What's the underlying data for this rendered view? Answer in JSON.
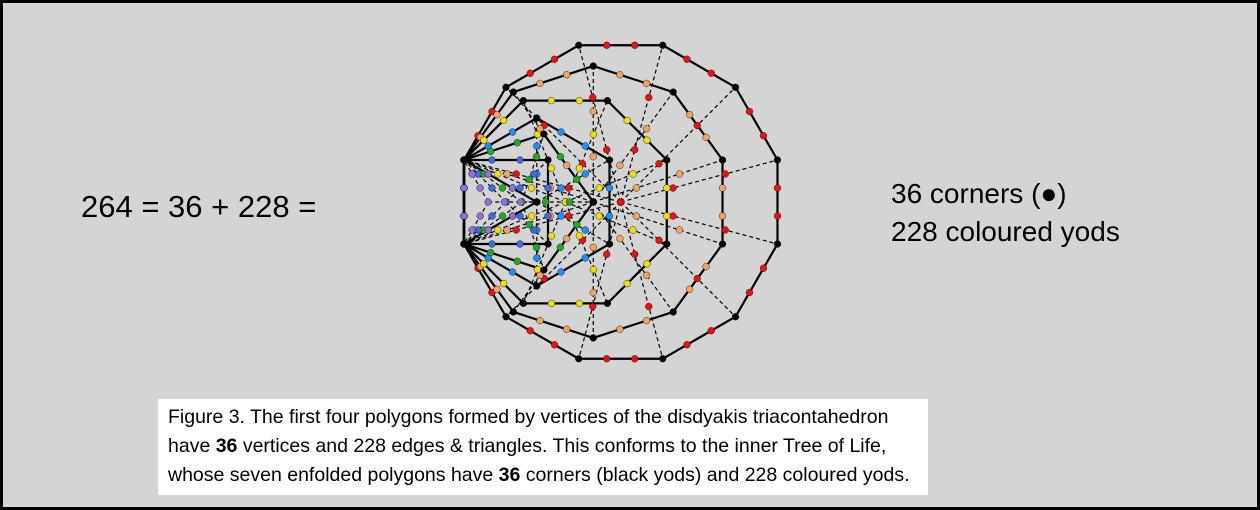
{
  "equation": "264 = 36 + 228 =",
  "legend": [
    "36 corners (●)",
    "228 coloured yods"
  ],
  "caption": {
    "lines": [
      [
        "Figure 3. The first four polygons formed by vertices of the disdyakis triacontahedron"
      ],
      [
        "have ",
        "36",
        " vertices and 228 edges & triangles. This conforms to the inner Tree of Life,"
      ],
      [
        "whose seven enfolded polygons have ",
        "36",
        " corners (black yods) and 228 coloured yods."
      ]
    ]
  }
}
